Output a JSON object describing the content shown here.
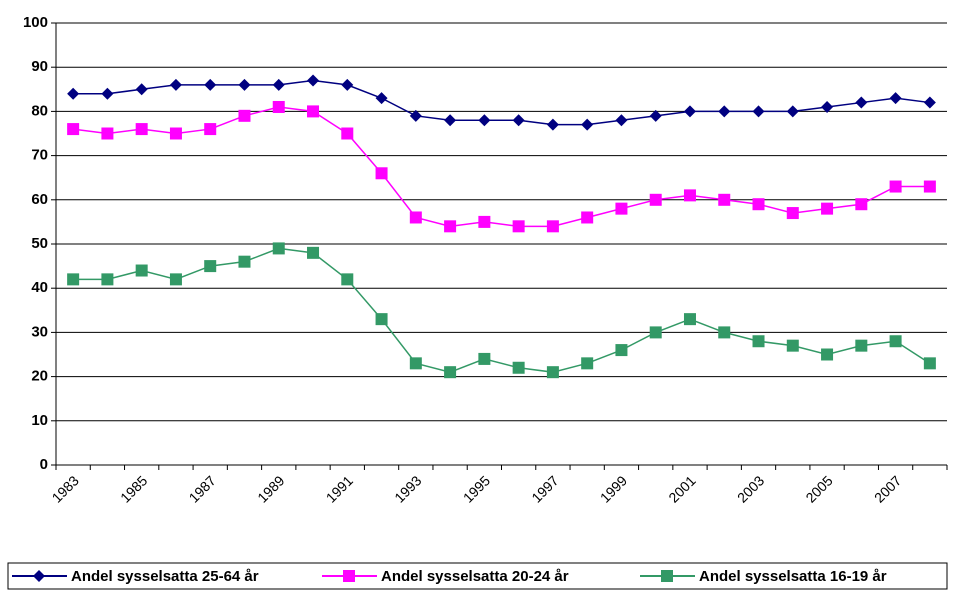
{
  "chart_data": {
    "type": "line",
    "categories": [
      "1983",
      null,
      "1985",
      null,
      "1987",
      null,
      "1989",
      null,
      "1991",
      null,
      "1993",
      null,
      "1995",
      null,
      "1997",
      null,
      "1999",
      null,
      "2001",
      null,
      "2003",
      null,
      "2005",
      null,
      "2007",
      null
    ],
    "series": [
      {
        "name": "Andel sysselsatta 25-64 år",
        "color": "#000080",
        "marker": "diamond",
        "values": [
          84,
          84,
          85,
          86,
          86,
          86,
          86,
          87,
          86,
          83,
          79,
          78,
          78,
          78,
          77,
          77,
          78,
          79,
          80,
          80,
          80,
          80,
          81,
          82,
          83,
          82
        ]
      },
      {
        "name": "Andel sysselsatta 20-24 år",
        "color": "#ff00ff",
        "marker": "square",
        "values": [
          76,
          75,
          76,
          75,
          76,
          79,
          81,
          80,
          75,
          66,
          56,
          54,
          55,
          54,
          54,
          56,
          58,
          60,
          61,
          60,
          59,
          57,
          58,
          59,
          63,
          63
        ]
      },
      {
        "name": "Andel sysselsatta 16-19 år",
        "color": "#339966",
        "marker": "square",
        "values": [
          42,
          42,
          44,
          42,
          45,
          46,
          49,
          48,
          42,
          33,
          23,
          21,
          24,
          22,
          21,
          23,
          26,
          30,
          33,
          30,
          28,
          27,
          25,
          27,
          28,
          23
        ]
      }
    ],
    "ylim": [
      0,
      100
    ],
    "yticks": [
      0,
      10,
      20,
      30,
      40,
      50,
      60,
      70,
      80,
      90,
      100
    ],
    "grid": true,
    "legend": "bottom"
  }
}
